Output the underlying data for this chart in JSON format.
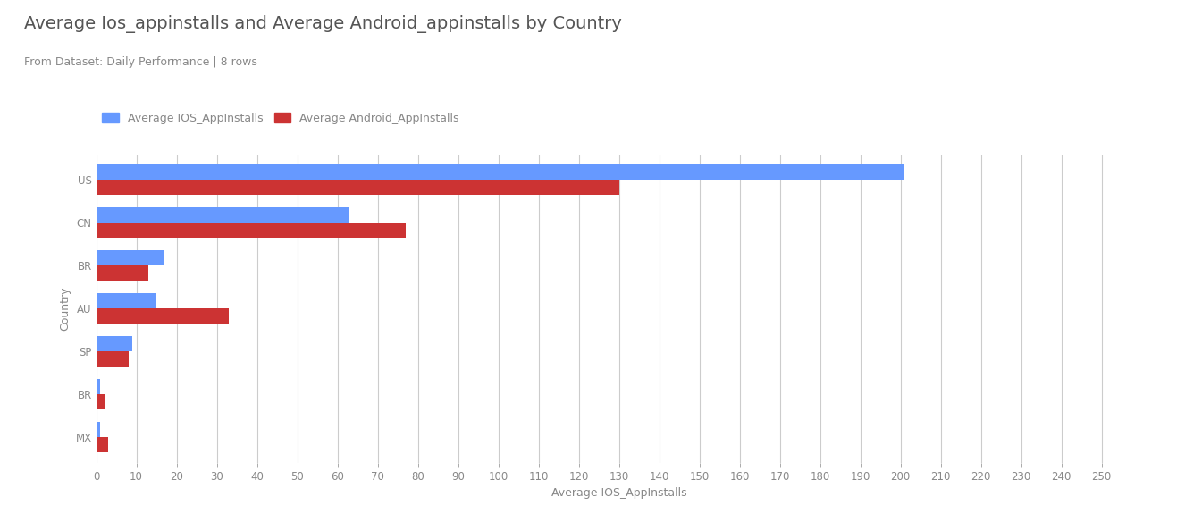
{
  "title": "Average Ios_appinstalls and Average Android_appinstalls by Country",
  "subtitle": "From Dataset: Daily Performance | 8 rows",
  "xlabel": "Average IOS_AppInstalls",
  "ylabel": "Country",
  "categories": [
    "US",
    "CN",
    "BR",
    "AU",
    "SP",
    "BR",
    "MX"
  ],
  "ios_values": [
    201,
    63,
    17,
    15,
    9,
    1,
    1
  ],
  "android_values": [
    130,
    77,
    13,
    33,
    8,
    2,
    3
  ],
  "ios_color": "#6699FF",
  "android_color": "#CC3333",
  "ios_label": "Average IOS_AppInstalls",
  "android_label": "Average Android_AppInstalls",
  "xlim": [
    0,
    260
  ],
  "xticks": [
    0,
    10,
    20,
    30,
    40,
    50,
    60,
    70,
    80,
    90,
    100,
    110,
    120,
    130,
    140,
    150,
    160,
    170,
    180,
    190,
    200,
    210,
    220,
    230,
    240,
    250
  ],
  "background_color": "#ffffff",
  "grid_color": "#cccccc",
  "title_color": "#555555",
  "label_color": "#888888",
  "tick_color": "#888888",
  "bar_height": 0.35,
  "title_fontsize": 14,
  "subtitle_fontsize": 9,
  "axis_fontsize": 9,
  "tick_fontsize": 8.5,
  "legend_fontsize": 9
}
